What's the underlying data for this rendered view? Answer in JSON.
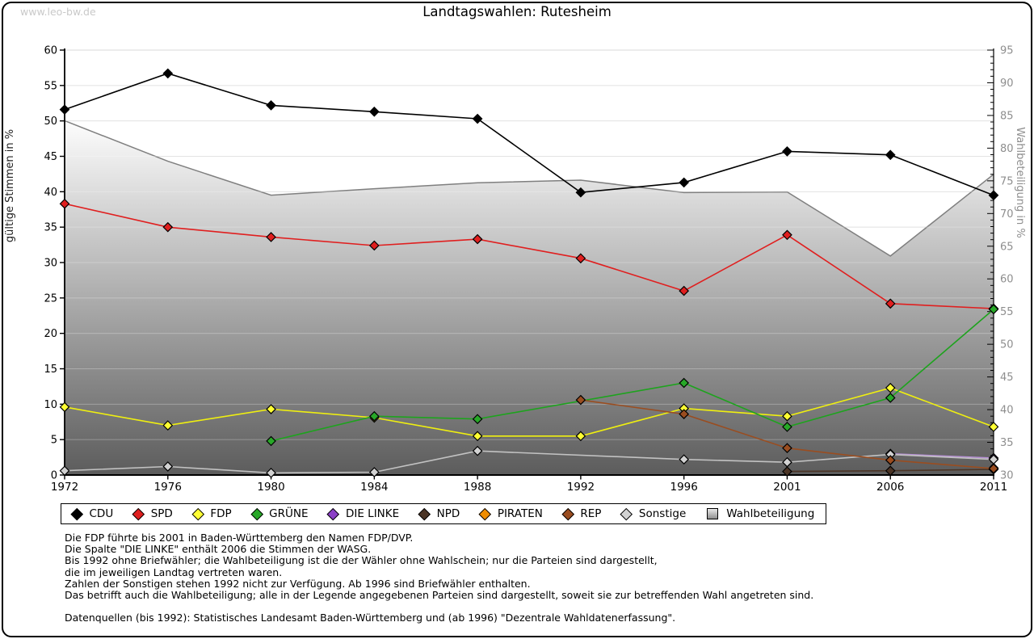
{
  "watermark": "www.leo-bw.de",
  "title": "Landtagswahlen: Rutesheim",
  "chart_data": {
    "type": "line",
    "x": [
      1972,
      1976,
      1980,
      1984,
      1988,
      1992,
      1996,
      2001,
      2006,
      2011
    ],
    "left_axis": {
      "label": "gültige Stimmen in %",
      "min": 0,
      "max": 60,
      "step": 5
    },
    "right_axis": {
      "label": "Wahlbeteiligung in %",
      "min": 30,
      "max": 95,
      "step": 5
    },
    "grid": "horizontal",
    "legend_position": "bottom",
    "series": [
      {
        "name": "CDU",
        "axis": "left",
        "kind": "line",
        "z": 9,
        "line_color": "#000000",
        "marker_color": "#000000",
        "values": [
          51.6,
          56.7,
          52.2,
          51.3,
          50.3,
          39.9,
          41.3,
          45.7,
          45.2,
          39.5
        ]
      },
      {
        "name": "SPD",
        "axis": "left",
        "kind": "line",
        "z": 5,
        "line_color": "#e01f1f",
        "marker_color": "#e01f1f",
        "values": [
          38.3,
          35.0,
          33.6,
          32.4,
          33.3,
          30.6,
          26.0,
          33.9,
          24.2,
          23.5
        ]
      },
      {
        "name": "FDP",
        "axis": "left",
        "kind": "line",
        "z": 6,
        "line_color": "#efef10",
        "marker_color": "#ffff33",
        "values": [
          9.6,
          7.0,
          9.3,
          8.1,
          5.5,
          5.5,
          9.4,
          8.3,
          12.3,
          6.8
        ]
      },
      {
        "name": "GRÜNE",
        "axis": "left",
        "kind": "line",
        "z": 7,
        "line_color": "#1ea31e",
        "marker_color": "#28a828",
        "values": [
          null,
          null,
          4.8,
          8.3,
          7.9,
          null,
          13.0,
          6.8,
          10.9,
          23.4
        ]
      },
      {
        "name": "DIE LINKE",
        "axis": "left",
        "kind": "line",
        "z": 1,
        "line_color": "#b68fd4",
        "marker_color": "#8b3fc6",
        "values": [
          null,
          null,
          null,
          null,
          null,
          null,
          null,
          null,
          3.0,
          2.4
        ]
      },
      {
        "name": "NPD",
        "axis": "left",
        "kind": "line",
        "z": 3,
        "line_color": "#4b3425",
        "marker_color": "#4b3425",
        "values": [
          null,
          null,
          null,
          null,
          null,
          null,
          null,
          0.5,
          0.6,
          0.8
        ]
      },
      {
        "name": "PIRATEN",
        "axis": "left",
        "kind": "line",
        "z": 4,
        "line_color": "#f08d00",
        "marker_color": "#f08d00",
        "values": [
          null,
          null,
          null,
          null,
          null,
          null,
          null,
          null,
          null,
          1.0
        ]
      },
      {
        "name": "REP",
        "axis": "left",
        "kind": "line",
        "z": 8,
        "line_color": "#9a4d20",
        "marker_color": "#9a4d20",
        "values": [
          null,
          null,
          null,
          null,
          null,
          10.6,
          8.6,
          3.8,
          2.1,
          0.9
        ]
      },
      {
        "name": "Sonstige",
        "axis": "left",
        "kind": "line",
        "z": 2,
        "line_color": "#c2c2c2",
        "marker_color": "#d2d2d2",
        "values": [
          0.6,
          1.2,
          0.3,
          0.4,
          3.4,
          null,
          2.2,
          1.8,
          2.9,
          2.2
        ]
      },
      {
        "name": "Wahlbeteiligung",
        "axis": "right",
        "kind": "area",
        "z": 0,
        "line_color": "#7f7f7f",
        "fill_top": "#fdfdfd",
        "fill_bottom": "#5c5c5c",
        "values": [
          84.2,
          78.0,
          72.8,
          73.8,
          74.7,
          75.1,
          73.2,
          73.3,
          63.5,
          76.0
        ]
      }
    ]
  },
  "footnotes": [
    "Die FDP führte bis 2001 in Baden-Württemberg den Namen FDP/DVP.",
    "Die Spalte \"DIE LINKE\" enthält 2006 die Stimmen der WASG.",
    "Bis 1992 ohne Briefwähler; die Wahlbeteiligung ist die der Wähler ohne Wahlschein; nur die Parteien sind dargestellt,",
    "die im jeweiligen Landtag vertreten waren.",
    "Zahlen der Sonstigen stehen 1992 nicht zur Verfügung. Ab 1996 sind Briefwähler enthalten.",
    "Das betrifft auch die Wahlbeteiligung; alle in der Legende angegebenen Parteien sind dargestellt, soweit sie zur betreffenden Wahl angetreten sind.",
    "",
    "Datenquellen (bis 1992): Statistisches Landesamt Baden-Württemberg und (ab 1996) \"Dezentrale Wahldatenerfassung\"."
  ]
}
